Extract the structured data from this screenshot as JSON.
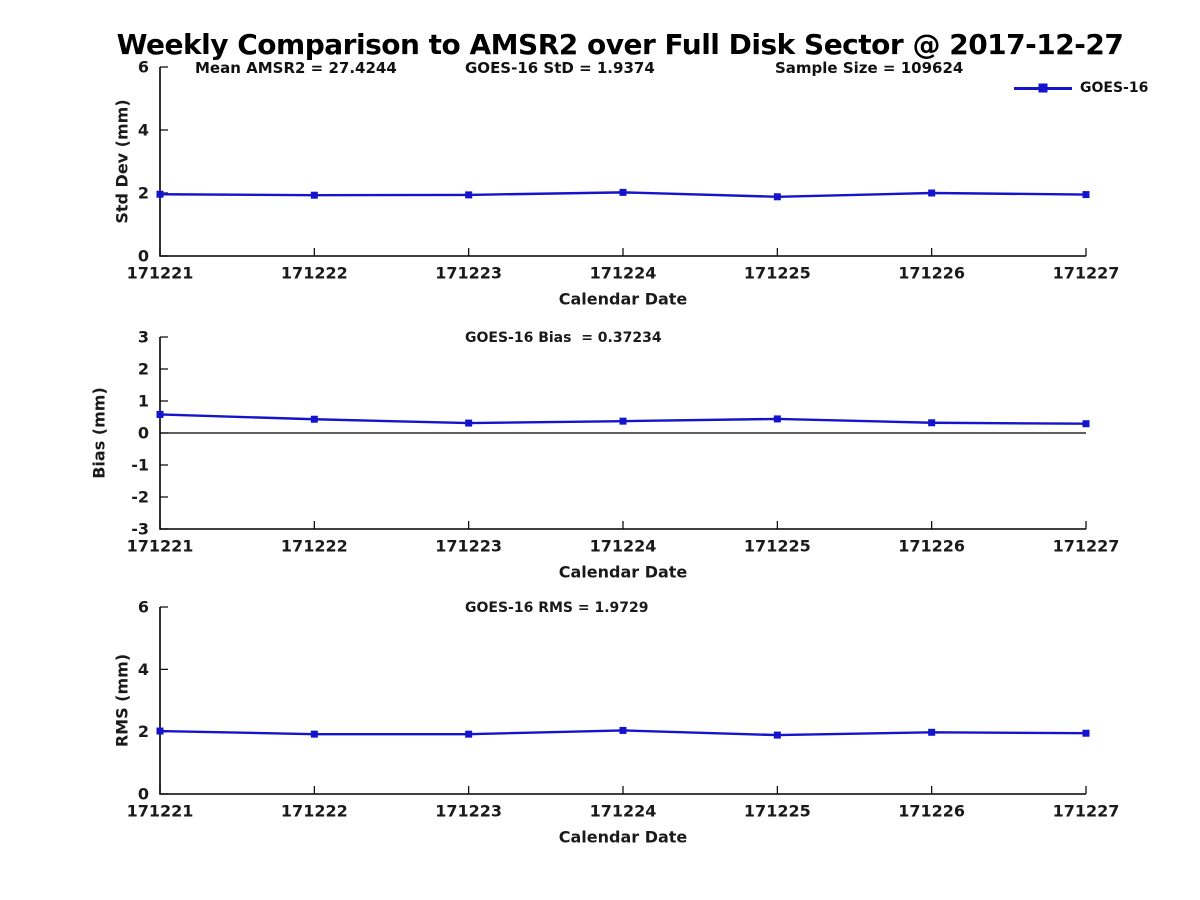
{
  "title": "Weekly Comparison to AMSR2 over Full Disk Sector @ 2017-12-27",
  "annotations": {
    "mean_amsr2": "Mean AMSR2 = 27.4244",
    "goes16_std": "GOES-16 StD = 1.9374",
    "sample_size": "Sample Size = 109624"
  },
  "legend": {
    "label": "GOES-16",
    "color": "#1414cd"
  },
  "colors": {
    "line": "#1414cd",
    "axis": "#000000",
    "text": "#1a1a1a"
  },
  "chart_data": [
    {
      "type": "line",
      "title": "",
      "xlabel": "Calendar Date",
      "ylabel": "Std Dev (mm)",
      "categories": [
        "171221",
        "171222",
        "171223",
        "171224",
        "171225",
        "171226",
        "171227"
      ],
      "series": [
        {
          "name": "GOES-16",
          "values": [
            1.96,
            1.93,
            1.94,
            2.02,
            1.88,
            2.0,
            1.95
          ]
        }
      ],
      "ylim": [
        0,
        6
      ],
      "yticks": [
        0,
        2,
        4,
        6
      ],
      "zero_line": false,
      "grid": false,
      "legend_position": "upper-right"
    },
    {
      "type": "line",
      "title": "GOES-16 Bias  = 0.37234",
      "xlabel": "Calendar Date",
      "ylabel": "Bias (mm)",
      "categories": [
        "171221",
        "171222",
        "171223",
        "171224",
        "171225",
        "171226",
        "171227"
      ],
      "series": [
        {
          "name": "GOES-16",
          "values": [
            0.58,
            0.43,
            0.31,
            0.37,
            0.44,
            0.32,
            0.29
          ]
        }
      ],
      "ylim": [
        -3,
        3
      ],
      "yticks": [
        -3,
        -2,
        -1,
        0,
        1,
        2,
        3
      ],
      "zero_line": true,
      "grid": false
    },
    {
      "type": "line",
      "title": "GOES-16 RMS = 1.9729",
      "xlabel": "Calendar Date",
      "ylabel": "RMS (mm)",
      "categories": [
        "171221",
        "171222",
        "171223",
        "171224",
        "171225",
        "171226",
        "171227"
      ],
      "series": [
        {
          "name": "GOES-16",
          "values": [
            2.02,
            1.92,
            1.92,
            2.04,
            1.89,
            1.98,
            1.95
          ]
        }
      ],
      "ylim": [
        0,
        6
      ],
      "yticks": [
        0,
        2,
        4,
        6
      ],
      "zero_line": false,
      "grid": false
    }
  ]
}
